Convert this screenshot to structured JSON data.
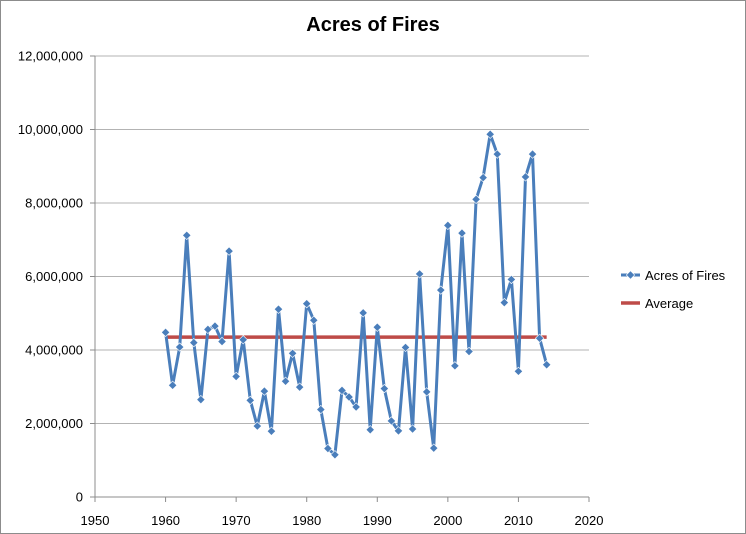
{
  "chart_data": {
    "type": "scatter",
    "title": "Acres of Fires",
    "xlabel": "",
    "ylabel": "",
    "xlim": [
      1950,
      2020
    ],
    "ylim": [
      0,
      12000000
    ],
    "x_ticks": [
      1950,
      1960,
      1970,
      1980,
      1990,
      2000,
      2010,
      2020
    ],
    "y_ticks": [
      0,
      2000000,
      4000000,
      6000000,
      8000000,
      10000000,
      12000000
    ],
    "x_tick_labels": [
      "1950",
      "1960",
      "1970",
      "1980",
      "1990",
      "2000",
      "2010",
      "2020"
    ],
    "y_tick_labels": [
      "0",
      "2,000,000",
      "4,000,000",
      "6,000,000",
      "8,000,000",
      "10,000,000",
      "12,000,000"
    ],
    "grid": "horizontal",
    "legend_position": "right",
    "series": [
      {
        "name": "Acres of Fires",
        "color": "#4a7ebb",
        "marker": "diamond",
        "x": [
          1960,
          1961,
          1962,
          1963,
          1964,
          1965,
          1966,
          1967,
          1968,
          1969,
          1970,
          1971,
          1972,
          1973,
          1974,
          1975,
          1976,
          1977,
          1978,
          1979,
          1980,
          1981,
          1982,
          1983,
          1984,
          1985,
          1986,
          1987,
          1988,
          1989,
          1990,
          1991,
          1992,
          1993,
          1994,
          1995,
          1996,
          1997,
          1998,
          1999,
          2000,
          2001,
          2002,
          2003,
          2004,
          2005,
          2006,
          2007,
          2008,
          2009,
          2010,
          2011,
          2012,
          2013,
          2014
        ],
        "y": [
          4480000,
          3040000,
          4080000,
          7120000,
          4200000,
          2650000,
          4560000,
          4650000,
          4230000,
          6690000,
          3280000,
          4280000,
          2630000,
          1930000,
          2880000,
          1790000,
          5110000,
          3150000,
          3910000,
          2990000,
          5260000,
          4810000,
          2380000,
          1320000,
          1150000,
          2900000,
          2720000,
          2450000,
          5010000,
          1830000,
          4620000,
          2950000,
          2070000,
          1800000,
          4070000,
          1850000,
          6070000,
          2860000,
          1330000,
          5630000,
          7390000,
          3570000,
          7180000,
          3960000,
          8100000,
          8690000,
          9870000,
          9330000,
          5290000,
          5920000,
          3420000,
          8710000,
          9330000,
          4320000,
          3600000
        ]
      },
      {
        "name": "Average",
        "color": "#be4b48",
        "x": [
          1960,
          2014
        ],
        "y": [
          4350000,
          4350000
        ]
      }
    ]
  }
}
